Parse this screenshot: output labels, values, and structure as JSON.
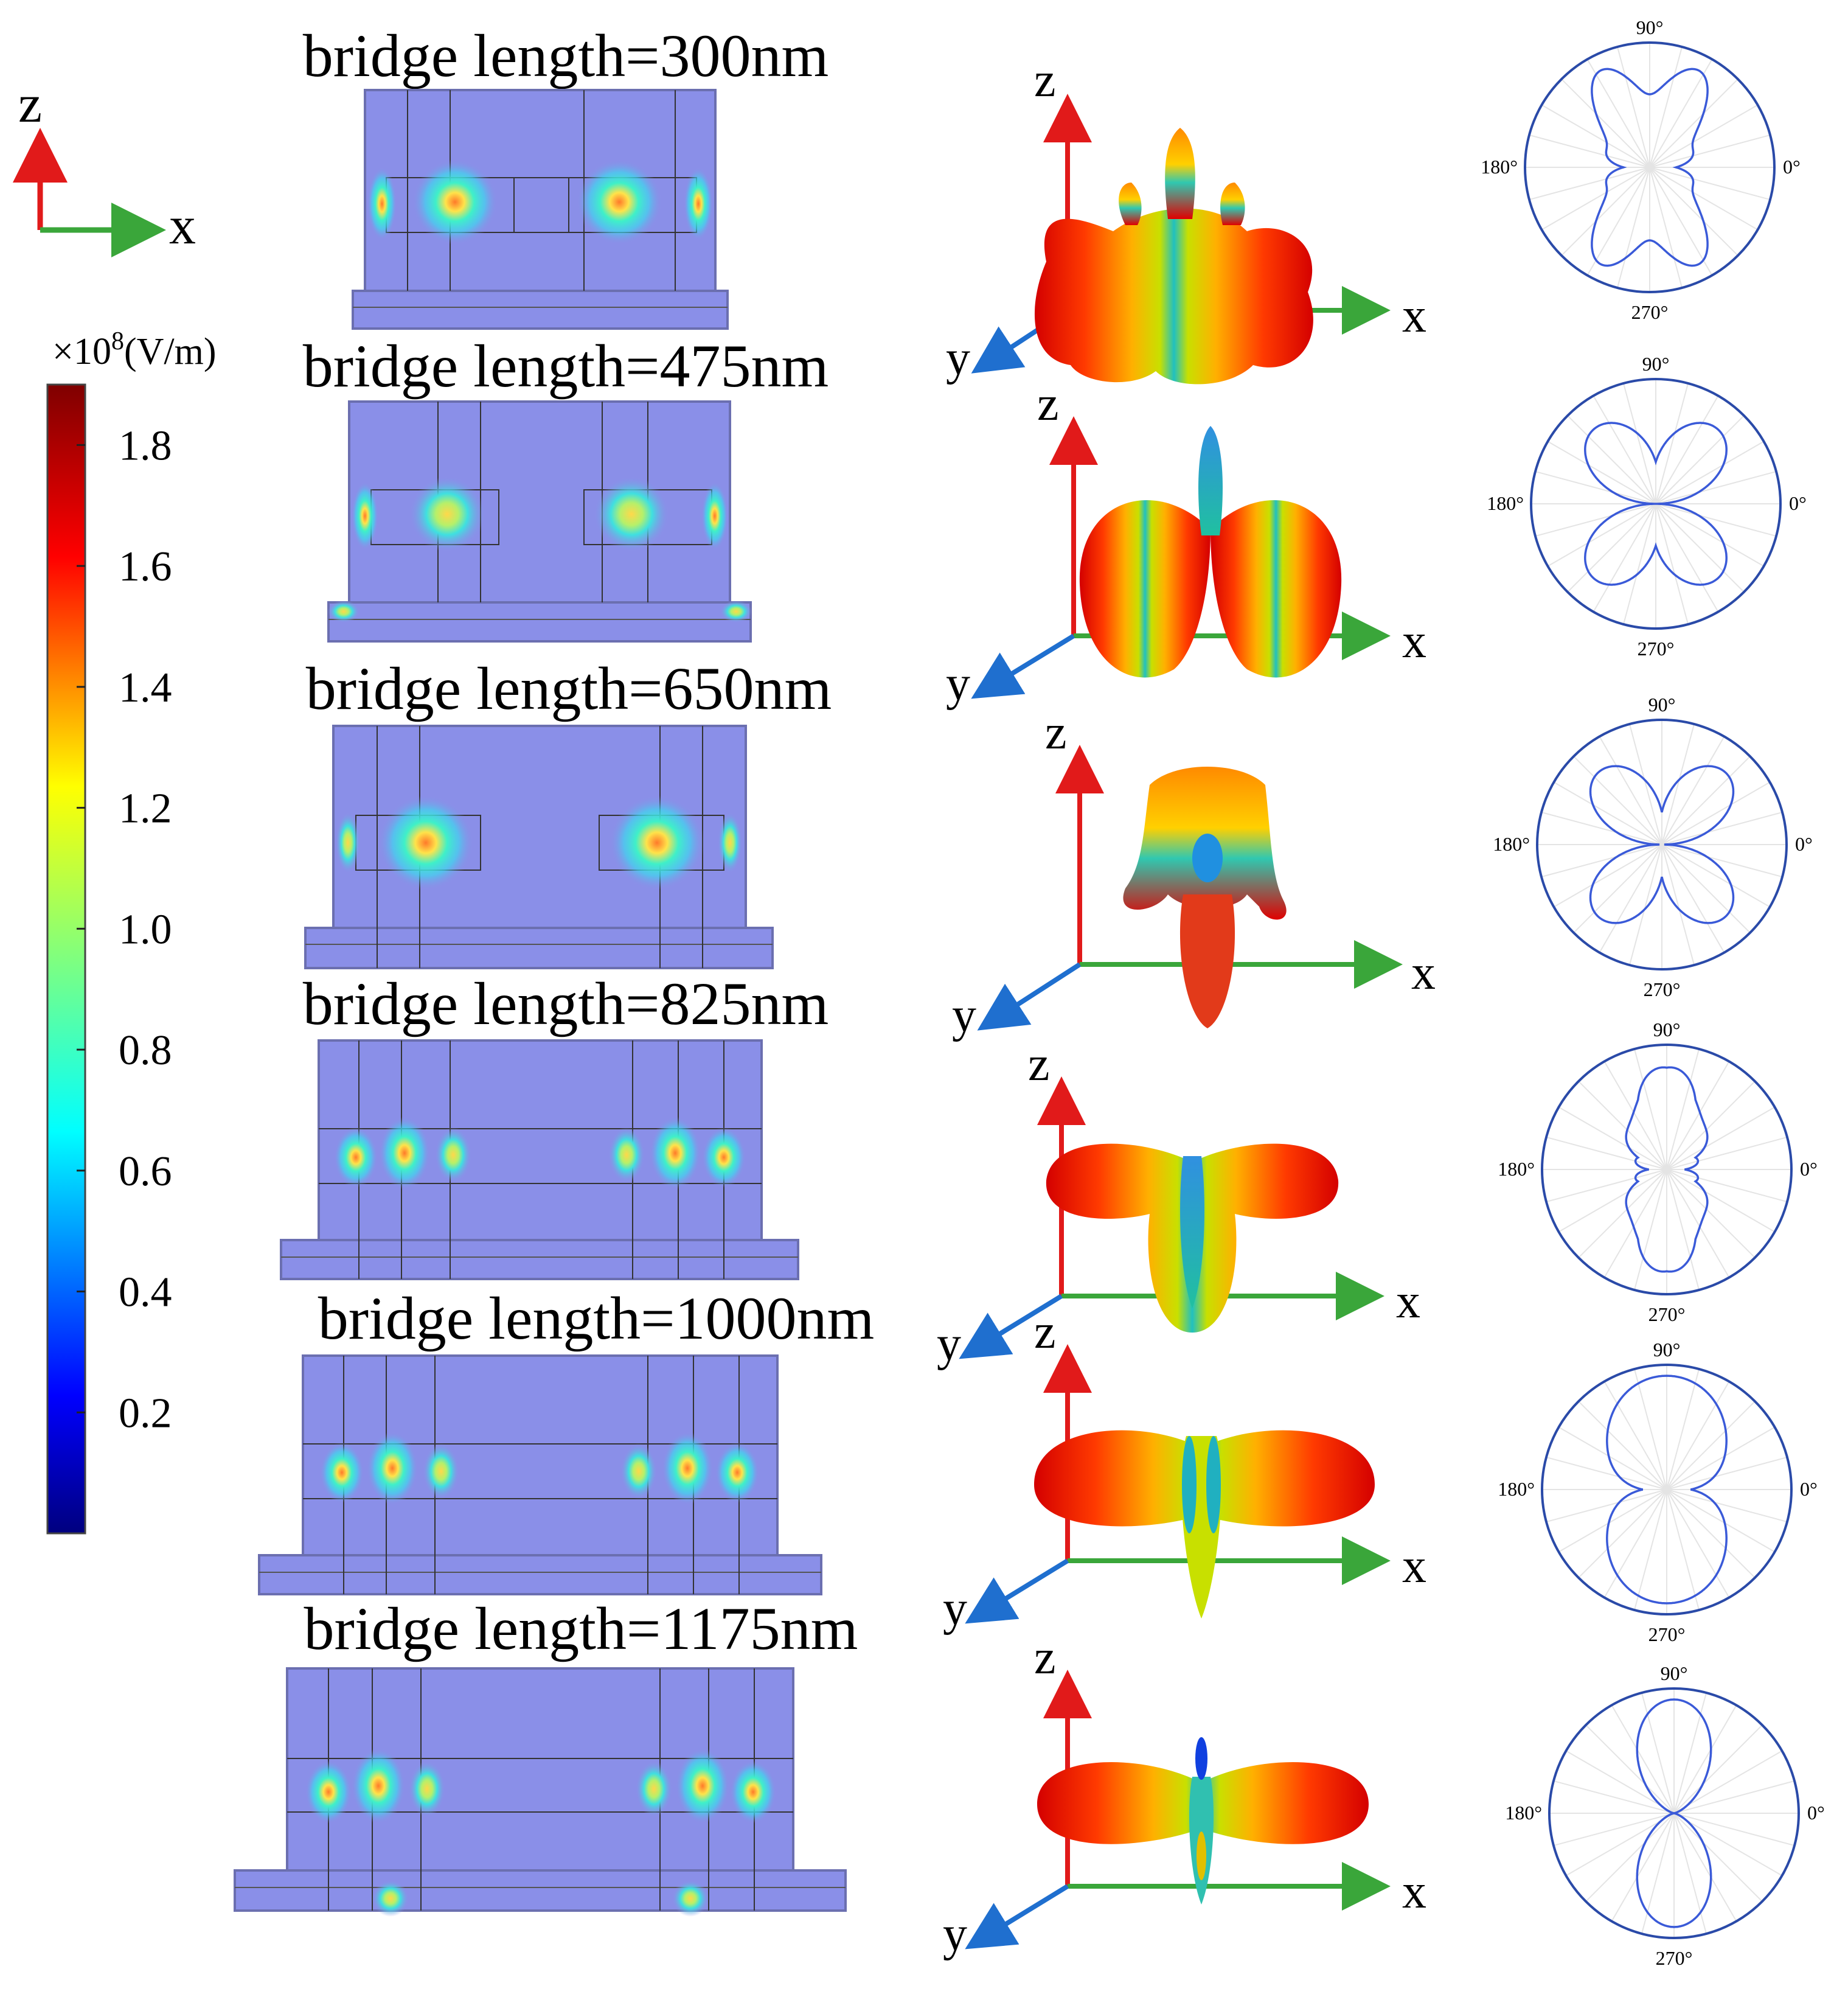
{
  "figure": {
    "axis_labels": {
      "z": "z",
      "x": "x",
      "y": "y"
    },
    "colorbar": {
      "unit_prefix": "×10",
      "unit_exp": "8",
      "unit_suffix": "(V/m)",
      "ticks": [
        "1.8",
        "1.6",
        "1.4",
        "1.2",
        "1.0",
        "0.8",
        "0.6",
        "0.4",
        "0.2"
      ],
      "tick_values": [
        1.8,
        1.6,
        1.4,
        1.2,
        1.0,
        0.8,
        0.6,
        0.4,
        0.2
      ],
      "range": [
        0.0,
        1.9
      ]
    },
    "colors": {
      "field_bg": "#8a8fe8",
      "axis_x": "#3aa63a",
      "axis_z": "#e11a1a",
      "axis_y": "#1f6fcf",
      "polar_curve": "#3a5ad8",
      "polar_circle": "#2a4aa8"
    },
    "panels": [
      {
        "title": "bridge length=300nm",
        "polar_angles": {
          "top": "90°",
          "right": "0°",
          "left": "180°",
          "bottom": "270°"
        }
      },
      {
        "title": "bridge length=475nm",
        "polar_angles": {
          "top": "90°",
          "right": "0°",
          "left": "180°",
          "bottom": "270°"
        }
      },
      {
        "title": "bridge length=650nm",
        "polar_angles": {
          "top": "90°",
          "right": "0°",
          "left": "180°",
          "bottom": "270°"
        }
      },
      {
        "title": "bridge length=825nm",
        "polar_angles": {
          "top": "90°",
          "right": "0°",
          "left": "180°",
          "bottom": "270°"
        }
      },
      {
        "title": "bridge length=1000nm",
        "polar_angles": {
          "top": "90°",
          "right": "0°",
          "left": "180°",
          "bottom": "270°"
        }
      },
      {
        "title": "bridge length=1175nm",
        "polar_angles": {
          "top": "90°",
          "right": "0°",
          "left": "180°",
          "bottom": "270°"
        }
      }
    ]
  }
}
